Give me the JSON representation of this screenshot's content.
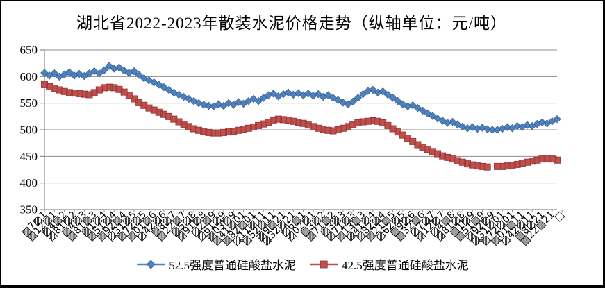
{
  "title": "湖北省2022-2023年散装水泥价格走势（纵轴单位：元/吨）",
  "chart_data": {
    "type": "line",
    "title": "湖北省2022-2023年散装水泥价格走势",
    "ylabel_unit": "元/吨",
    "ylim": [
      350,
      650
    ],
    "grid": "horizontal",
    "legend_position": "bottom",
    "x_tick_interval": 2,
    "colors": {
      "grid": "#8C8C8C",
      "axis": "#8C8C8C",
      "text": "#000000",
      "background": "#FFFFFF",
      "border": "#000000"
    },
    "y_axis": {
      "ticks": [
        350,
        400,
        450,
        500,
        550,
        600,
        650
      ]
    },
    "x_labels": [
      "1▨7▨",
      "1▨21▨",
      "2▨4▨",
      "2▨18▨",
      "3▨4▨",
      "3▨18▨",
      "4▨1▨",
      "4▨15▨",
      "4▨29▨",
      "5▨13▨",
      "5▨27▨",
      "6▨10▨",
      "6▨24▨",
      "7▨8▨",
      "7▨22▨",
      "8▨5▨",
      "8▨19▨",
      "9▨2▨",
      "9▨16▨",
      "9▨30▨",
      "10▨14▨",
      "10▨28▨",
      "11▨11▨",
      "11▨25▨",
      "12▨9▨",
      "12▨23▨",
      "1▨6▨",
      "1▨20▨",
      "2▨3▨",
      "2▨17▨",
      "3▨3▨",
      "3▨17▨",
      "3▨31▨",
      "4▨14▨",
      "4▨28▨",
      "5▨12▨",
      "5▨26▨",
      "6▨9▨",
      "6▨23▨",
      "7▨7▨",
      "7▨21▨",
      "8▨4▨",
      "8▨18▨",
      "9▨1▨",
      "9▨15▨",
      "9▨29▨",
      "10▨13▨",
      "10▨27▨",
      "11▨10▨",
      "11▨24▨",
      "12▨8▨",
      "12▨22▨",
      "□"
    ],
    "series": [
      {
        "name": "52.5强度普通硅酸盐水泥",
        "color": "#4F81BD",
        "marker_border": "#3D6699",
        "marker": "diamond",
        "values": [
          607,
          602,
          606,
          600,
          604,
          608,
          602,
          605,
          601,
          606,
          610,
          606,
          612,
          620,
          615,
          617,
          611,
          607,
          610,
          603,
          597,
          593,
          589,
          585,
          580,
          575,
          570,
          566,
          562,
          558,
          554,
          550,
          547,
          545,
          544,
          548,
          545,
          550,
          547,
          552,
          549,
          554,
          558,
          554,
          560,
          565,
          568,
          563,
          567,
          570,
          566,
          569,
          565,
          568,
          564,
          567,
          562,
          565,
          560,
          556,
          551,
          548,
          553,
          560,
          567,
          573,
          575,
          570,
          572,
          566,
          560,
          554,
          548,
          544,
          546,
          541,
          536,
          531,
          526,
          521,
          517,
          513,
          515,
          510,
          506,
          503,
          505,
          502,
          504,
          501,
          500,
          500,
          502,
          505,
          503,
          507,
          505,
          509,
          507,
          511,
          514,
          512,
          516,
          520
        ]
      },
      {
        "name": "42.5强度普通硅酸盐水泥",
        "color": "#C0504D",
        "marker_border": "#943634",
        "marker": "square",
        "values": [
          585,
          581,
          578,
          575,
          572,
          570,
          569,
          568,
          567,
          566,
          570,
          575,
          579,
          580,
          579,
          576,
          571,
          565,
          558,
          551,
          546,
          541,
          537,
          533,
          529,
          525,
          520,
          515,
          510,
          506,
          502,
          499,
          497,
          495,
          494,
          494,
          495,
          496,
          497,
          499,
          501,
          503,
          505,
          508,
          511,
          514,
          517,
          520,
          519,
          518,
          516,
          514,
          512,
          509,
          506,
          503,
          501,
          499,
          498,
          500,
          503,
          506,
          510,
          513,
          515,
          516,
          517,
          516,
          513,
          508,
          502,
          496,
          490,
          484,
          478,
          472,
          467,
          463,
          459,
          455,
          451,
          448,
          445,
          442,
          439,
          436,
          434,
          432,
          431,
          430,
          null,
          431,
          431,
          432,
          433,
          435,
          437,
          439,
          441,
          443,
          445,
          446,
          445,
          443
        ]
      }
    ]
  }
}
